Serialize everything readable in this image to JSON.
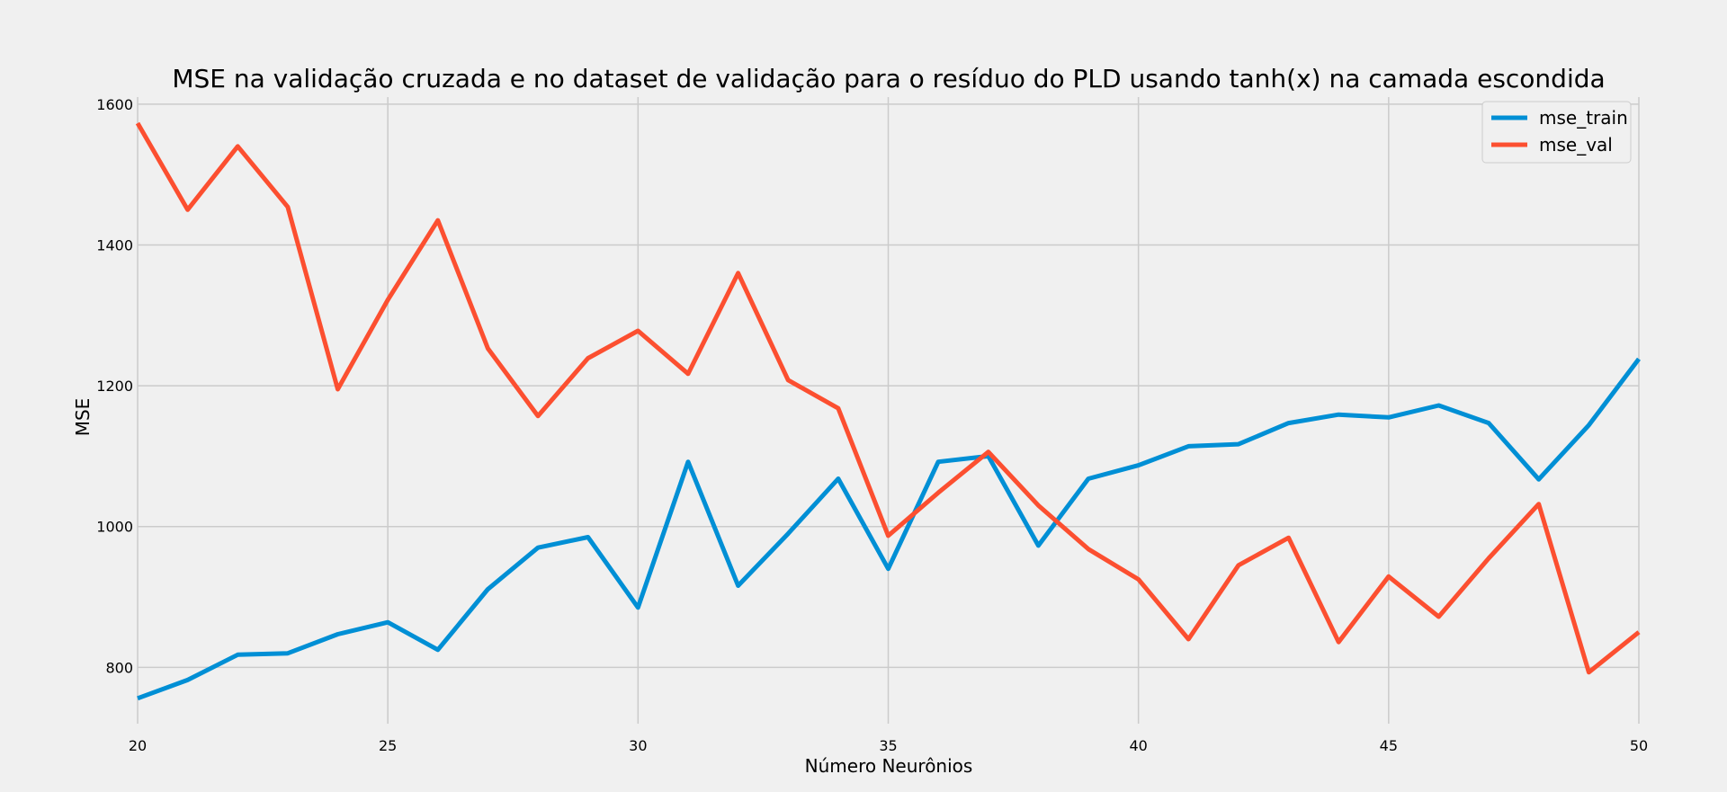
{
  "chart_data": {
    "type": "line",
    "title": "MSE na validação cruzada e no dataset de validação para o resíduo do PLD usando tanh(x) na camada escondida",
    "xlabel": "Número Neurônios",
    "ylabel": "MSE",
    "xlim": [
      20,
      50
    ],
    "ylim": [
      720,
      1610
    ],
    "x_ticks": [
      "20",
      "25",
      "30",
      "35",
      "40",
      "45",
      "50"
    ],
    "y_ticks": [
      "800",
      "1000",
      "1200",
      "1400",
      "1600"
    ],
    "grid": true,
    "legend_position": "top-right",
    "x": [
      20,
      21,
      22,
      23,
      24,
      25,
      26,
      27,
      28,
      29,
      30,
      31,
      32,
      33,
      34,
      35,
      36,
      37,
      38,
      39,
      40,
      41,
      42,
      43,
      44,
      45,
      46,
      47,
      48,
      49,
      50
    ],
    "series": [
      {
        "name": "mse_train",
        "color": "#008fd5",
        "values": [
          756,
          782,
          818,
          820,
          847,
          864,
          825,
          911,
          970,
          985,
          885,
          1092,
          916,
          990,
          1068,
          940,
          1092,
          1100,
          973,
          1068,
          1087,
          1114,
          1117,
          1147,
          1159,
          1155,
          1172,
          1147,
          1067,
          1144,
          1238
        ]
      },
      {
        "name": "mse_val",
        "color": "#fc4f30",
        "values": [
          1573,
          1450,
          1540,
          1454,
          1195,
          1322,
          1435,
          1253,
          1157,
          1239,
          1278,
          1217,
          1360,
          1208,
          1168,
          987,
          1048,
          1106,
          1030,
          968,
          925,
          840,
          945,
          984,
          836,
          929,
          872,
          955,
          1032,
          793,
          850
        ]
      }
    ]
  }
}
